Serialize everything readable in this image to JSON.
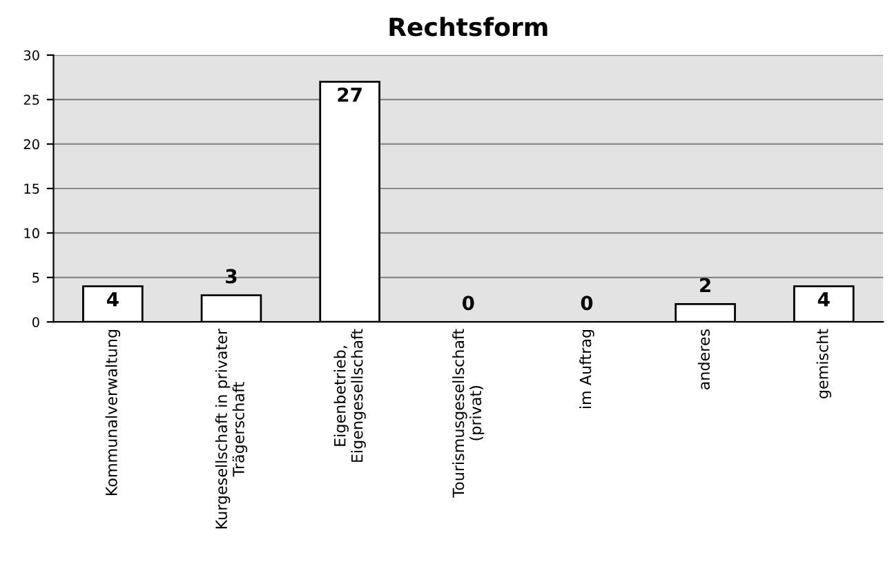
{
  "chart_data": {
    "type": "bar",
    "title": "Rechtsform",
    "categories": [
      "Kommunalverwaltung",
      "Kurgesellschaft in privater\nTrägerschaft",
      "Eigenbetrieb,\nEigengesellschaft",
      "Tourismusgesellschaft\n(privat)",
      "im Auftrag",
      "anderes",
      "gemischt"
    ],
    "values": [
      4,
      3,
      27,
      0,
      0,
      2,
      4
    ],
    "color": "#ffffff",
    "ylim": [
      0,
      30
    ],
    "yticks": [
      0,
      5,
      10,
      15,
      20,
      25,
      30
    ],
    "grid": "y",
    "data_labels": true
  }
}
